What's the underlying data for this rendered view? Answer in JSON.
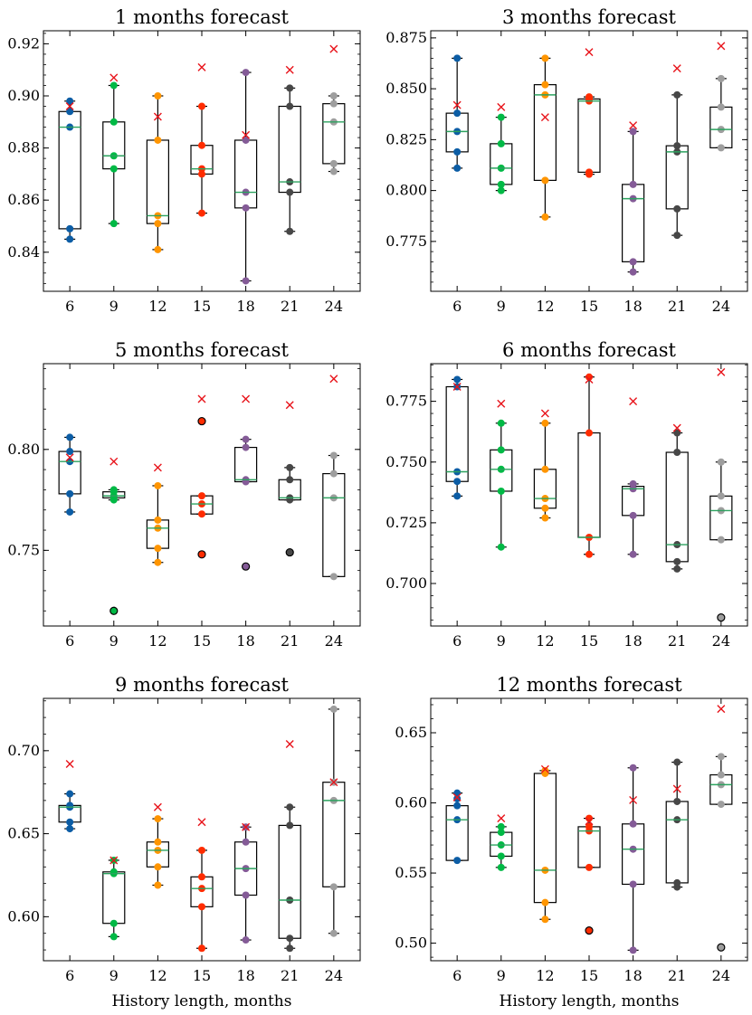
{
  "chart_data": [
    {
      "type": "box",
      "title": "1 months forecast",
      "xlabel": "",
      "ylabel": "",
      "categories": [
        "6",
        "9",
        "12",
        "15",
        "18",
        "21",
        "24"
      ],
      "ylim": [
        0.825,
        0.925
      ],
      "yticks": [
        0.84,
        0.86,
        0.88,
        0.9,
        0.92
      ],
      "ytick_labels": [
        "0.84",
        "0.86",
        "0.88",
        "0.90",
        "0.92"
      ],
      "boxes": [
        {
          "category": "6",
          "color": "#0c5da5",
          "q1": 0.849,
          "median": 0.888,
          "q3": 0.894,
          "whisker_low": 0.845,
          "whisker_high": 0.898,
          "points": [
            0.845,
            0.849,
            0.888,
            0.894,
            0.898
          ],
          "outliers": [],
          "marker": 0.896
        },
        {
          "category": "9",
          "color": "#00b945",
          "q1": 0.872,
          "median": 0.877,
          "q3": 0.89,
          "whisker_low": 0.851,
          "whisker_high": 0.904,
          "points": [
            0.851,
            0.872,
            0.877,
            0.89,
            0.904
          ],
          "outliers": [],
          "marker": 0.907
        },
        {
          "category": "12",
          "color": "#ff9500",
          "q1": 0.851,
          "median": 0.854,
          "q3": 0.883,
          "whisker_low": 0.841,
          "whisker_high": 0.9,
          "points": [
            0.841,
            0.851,
            0.854,
            0.883,
            0.9
          ],
          "outliers": [],
          "marker": 0.892
        },
        {
          "category": "15",
          "color": "#ff2c00",
          "q1": 0.87,
          "median": 0.872,
          "q3": 0.881,
          "whisker_low": 0.855,
          "whisker_high": 0.896,
          "points": [
            0.855,
            0.87,
            0.872,
            0.881,
            0.896
          ],
          "outliers": [],
          "marker": 0.911
        },
        {
          "category": "18",
          "color": "#845b97",
          "q1": 0.857,
          "median": 0.863,
          "q3": 0.883,
          "whisker_low": 0.829,
          "whisker_high": 0.909,
          "points": [
            0.829,
            0.857,
            0.863,
            0.883,
            0.909
          ],
          "outliers": [],
          "marker": 0.885
        },
        {
          "category": "21",
          "color": "#474747",
          "q1": 0.863,
          "median": 0.867,
          "q3": 0.896,
          "whisker_low": 0.848,
          "whisker_high": 0.903,
          "points": [
            0.848,
            0.863,
            0.867,
            0.896,
            0.903
          ],
          "outliers": [],
          "marker": 0.91
        },
        {
          "category": "24",
          "color": "#9e9e9e",
          "q1": 0.874,
          "median": 0.89,
          "q3": 0.897,
          "whisker_low": 0.871,
          "whisker_high": 0.9,
          "points": [
            0.871,
            0.874,
            0.89,
            0.897,
            0.9
          ],
          "outliers": [],
          "marker": 0.918
        }
      ]
    },
    {
      "type": "box",
      "title": "3 months forecast",
      "xlabel": "",
      "ylabel": "",
      "categories": [
        "6",
        "9",
        "12",
        "15",
        "18",
        "21",
        "24"
      ],
      "ylim": [
        0.7505,
        0.8785
      ],
      "yticks": [
        0.775,
        0.8,
        0.825,
        0.85,
        0.875
      ],
      "ytick_labels": [
        "0.775",
        "0.800",
        "0.825",
        "0.850",
        "0.875"
      ],
      "boxes": [
        {
          "category": "6",
          "color": "#0c5da5",
          "q1": 0.819,
          "median": 0.829,
          "q3": 0.838,
          "whisker_low": 0.811,
          "whisker_high": 0.865,
          "points": [
            0.811,
            0.819,
            0.829,
            0.838,
            0.865
          ],
          "outliers": [],
          "marker": 0.842
        },
        {
          "category": "9",
          "color": "#00b945",
          "q1": 0.803,
          "median": 0.811,
          "q3": 0.823,
          "whisker_low": 0.8,
          "whisker_high": 0.836,
          "points": [
            0.8,
            0.803,
            0.811,
            0.823,
            0.836
          ],
          "outliers": [],
          "marker": 0.841
        },
        {
          "category": "12",
          "color": "#ff9500",
          "q1": 0.805,
          "median": 0.847,
          "q3": 0.852,
          "whisker_low": 0.787,
          "whisker_high": 0.865,
          "points": [
            0.787,
            0.805,
            0.847,
            0.852,
            0.865
          ],
          "outliers": [],
          "marker": 0.836
        },
        {
          "category": "15",
          "color": "#ff2c00",
          "q1": 0.809,
          "median": 0.844,
          "q3": 0.845,
          "whisker_low": 0.808,
          "whisker_high": 0.846,
          "points": [
            0.808,
            0.809,
            0.844,
            0.845,
            0.846
          ],
          "outliers": [],
          "marker": 0.868
        },
        {
          "category": "18",
          "color": "#845b97",
          "q1": 0.765,
          "median": 0.796,
          "q3": 0.803,
          "whisker_low": 0.76,
          "whisker_high": 0.829,
          "points": [
            0.76,
            0.765,
            0.796,
            0.803,
            0.829
          ],
          "outliers": [],
          "marker": 0.832
        },
        {
          "category": "21",
          "color": "#474747",
          "q1": 0.791,
          "median": 0.819,
          "q3": 0.822,
          "whisker_low": 0.778,
          "whisker_high": 0.847,
          "points": [
            0.778,
            0.791,
            0.819,
            0.822,
            0.847
          ],
          "outliers": [],
          "marker": 0.86
        },
        {
          "category": "24",
          "color": "#9e9e9e",
          "q1": 0.821,
          "median": 0.83,
          "q3": 0.841,
          "whisker_low": 0.821,
          "whisker_high": 0.855,
          "points": [
            0.821,
            0.83,
            0.841,
            0.855
          ],
          "outliers": [],
          "marker": 0.871
        }
      ]
    },
    {
      "type": "box",
      "title": "5 months forecast",
      "xlabel": "",
      "ylabel": "",
      "categories": [
        "6",
        "9",
        "12",
        "15",
        "18",
        "21",
        "24"
      ],
      "ylim": [
        0.7125,
        0.8425
      ],
      "yticks": [
        0.75,
        0.8
      ],
      "ytick_labels": [
        "0.75",
        "0.80"
      ],
      "boxes": [
        {
          "category": "6",
          "color": "#0c5da5",
          "q1": 0.778,
          "median": 0.794,
          "q3": 0.799,
          "whisker_low": 0.769,
          "whisker_high": 0.806,
          "points": [
            0.769,
            0.778,
            0.794,
            0.799,
            0.806
          ],
          "outliers": [],
          "marker": 0.796
        },
        {
          "category": "9",
          "color": "#00b945",
          "q1": 0.776,
          "median": 0.777,
          "q3": 0.779,
          "whisker_low": 0.775,
          "whisker_high": 0.78,
          "points": [
            0.775,
            0.776,
            0.777,
            0.779,
            0.78
          ],
          "outliers": [
            0.72
          ],
          "marker": 0.794
        },
        {
          "category": "12",
          "color": "#ff9500",
          "q1": 0.751,
          "median": 0.761,
          "q3": 0.765,
          "whisker_low": 0.744,
          "whisker_high": 0.782,
          "points": [
            0.744,
            0.751,
            0.761,
            0.765,
            0.782
          ],
          "outliers": [],
          "marker": 0.791
        },
        {
          "category": "15",
          "color": "#ff2c00",
          "q1": 0.768,
          "median": 0.773,
          "q3": 0.777,
          "whisker_low": 0.768,
          "whisker_high": 0.777,
          "points": [
            0.768,
            0.773,
            0.777
          ],
          "outliers": [
            0.814,
            0.748
          ],
          "marker": 0.825
        },
        {
          "category": "18",
          "color": "#845b97",
          "q1": 0.784,
          "median": 0.785,
          "q3": 0.801,
          "whisker_low": 0.784,
          "whisker_high": 0.805,
          "points": [
            0.784,
            0.785,
            0.801,
            0.805
          ],
          "outliers": [
            0.742
          ],
          "marker": 0.825
        },
        {
          "category": "21",
          "color": "#474747",
          "q1": 0.775,
          "median": 0.776,
          "q3": 0.785,
          "whisker_low": 0.775,
          "whisker_high": 0.791,
          "points": [
            0.775,
            0.776,
            0.785,
            0.791
          ],
          "outliers": [
            0.749
          ],
          "marker": 0.822
        },
        {
          "category": "24",
          "color": "#9e9e9e",
          "q1": 0.737,
          "median": 0.776,
          "q3": 0.788,
          "whisker_low": 0.737,
          "whisker_high": 0.797,
          "points": [
            0.737,
            0.776,
            0.788,
            0.797
          ],
          "outliers": [],
          "marker": 0.835
        }
      ]
    },
    {
      "type": "box",
      "title": "6 months forecast",
      "xlabel": "",
      "ylabel": "",
      "categories": [
        "6",
        "9",
        "12",
        "15",
        "18",
        "21",
        "24"
      ],
      "ylim": [
        0.6825,
        0.7905
      ],
      "yticks": [
        0.7,
        0.725,
        0.75,
        0.775
      ],
      "ytick_labels": [
        "0.700",
        "0.725",
        "0.750",
        "0.775"
      ],
      "boxes": [
        {
          "category": "6",
          "color": "#0c5da5",
          "q1": 0.742,
          "median": 0.746,
          "q3": 0.781,
          "whisker_low": 0.736,
          "whisker_high": 0.784,
          "points": [
            0.736,
            0.742,
            0.746,
            0.781,
            0.784
          ],
          "outliers": [],
          "marker": 0.781
        },
        {
          "category": "9",
          "color": "#00b945",
          "q1": 0.738,
          "median": 0.747,
          "q3": 0.755,
          "whisker_low": 0.715,
          "whisker_high": 0.766,
          "points": [
            0.715,
            0.738,
            0.747,
            0.755,
            0.766
          ],
          "outliers": [],
          "marker": 0.774
        },
        {
          "category": "12",
          "color": "#ff9500",
          "q1": 0.731,
          "median": 0.735,
          "q3": 0.747,
          "whisker_low": 0.727,
          "whisker_high": 0.766,
          "points": [
            0.727,
            0.731,
            0.735,
            0.747,
            0.766
          ],
          "outliers": [],
          "marker": 0.77
        },
        {
          "category": "15",
          "color": "#ff2c00",
          "q1": 0.719,
          "median": 0.719,
          "q3": 0.762,
          "whisker_low": 0.712,
          "whisker_high": 0.785,
          "points": [
            0.712,
            0.719,
            0.762,
            0.785
          ],
          "outliers": [],
          "marker": 0.784
        },
        {
          "category": "18",
          "color": "#845b97",
          "q1": 0.728,
          "median": 0.739,
          "q3": 0.74,
          "whisker_low": 0.712,
          "whisker_high": 0.741,
          "points": [
            0.712,
            0.728,
            0.739,
            0.741
          ],
          "outliers": [],
          "marker": 0.775
        },
        {
          "category": "21",
          "color": "#474747",
          "q1": 0.709,
          "median": 0.716,
          "q3": 0.754,
          "whisker_low": 0.706,
          "whisker_high": 0.762,
          "points": [
            0.706,
            0.709,
            0.716,
            0.754,
            0.762
          ],
          "outliers": [],
          "marker": 0.764
        },
        {
          "category": "24",
          "color": "#9e9e9e",
          "q1": 0.718,
          "median": 0.73,
          "q3": 0.736,
          "whisker_low": 0.718,
          "whisker_high": 0.75,
          "points": [
            0.718,
            0.73,
            0.736,
            0.75
          ],
          "outliers": [
            0.686
          ],
          "marker": 0.787
        }
      ]
    },
    {
      "type": "box",
      "title": "9 months forecast",
      "xlabel": "History length, months",
      "ylabel": "",
      "categories": [
        "6",
        "9",
        "12",
        "15",
        "18",
        "21",
        "24"
      ],
      "ylim": [
        0.5735,
        0.7315
      ],
      "yticks": [
        0.6,
        0.65,
        0.7
      ],
      "ytick_labels": [
        "0.60",
        "0.65",
        "0.70"
      ],
      "boxes": [
        {
          "category": "6",
          "color": "#0c5da5",
          "q1": 0.657,
          "median": 0.666,
          "q3": 0.667,
          "whisker_low": 0.653,
          "whisker_high": 0.674,
          "points": [
            0.653,
            0.657,
            0.666,
            0.667,
            0.674
          ],
          "outliers": [],
          "marker": 0.692
        },
        {
          "category": "9",
          "color": "#00b945",
          "q1": 0.596,
          "median": 0.626,
          "q3": 0.627,
          "whisker_low": 0.588,
          "whisker_high": 0.634,
          "points": [
            0.588,
            0.596,
            0.626,
            0.627,
            0.634
          ],
          "outliers": [],
          "marker": 0.634
        },
        {
          "category": "12",
          "color": "#ff9500",
          "q1": 0.63,
          "median": 0.64,
          "q3": 0.645,
          "whisker_low": 0.619,
          "whisker_high": 0.659,
          "points": [
            0.619,
            0.63,
            0.64,
            0.645,
            0.659
          ],
          "outliers": [],
          "marker": 0.666
        },
        {
          "category": "15",
          "color": "#ff2c00",
          "q1": 0.606,
          "median": 0.617,
          "q3": 0.624,
          "whisker_low": 0.581,
          "whisker_high": 0.64,
          "points": [
            0.581,
            0.606,
            0.617,
            0.624,
            0.64
          ],
          "outliers": [],
          "marker": 0.657
        },
        {
          "category": "18",
          "color": "#845b97",
          "q1": 0.613,
          "median": 0.629,
          "q3": 0.645,
          "whisker_low": 0.586,
          "whisker_high": 0.654,
          "points": [
            0.586,
            0.613,
            0.629,
            0.645,
            0.654
          ],
          "outliers": [],
          "marker": 0.654
        },
        {
          "category": "21",
          "color": "#474747",
          "q1": 0.587,
          "median": 0.61,
          "q3": 0.655,
          "whisker_low": 0.581,
          "whisker_high": 0.666,
          "points": [
            0.581,
            0.587,
            0.61,
            0.655,
            0.666
          ],
          "outliers": [],
          "marker": 0.704
        },
        {
          "category": "24",
          "color": "#9e9e9e",
          "q1": 0.618,
          "median": 0.67,
          "q3": 0.681,
          "whisker_low": 0.59,
          "whisker_high": 0.725,
          "points": [
            0.59,
            0.618,
            0.67,
            0.681,
            0.725
          ],
          "outliers": [],
          "marker": 0.681
        }
      ]
    },
    {
      "type": "box",
      "title": "12 months forecast",
      "xlabel": "History length, months",
      "ylabel": "",
      "categories": [
        "6",
        "9",
        "12",
        "15",
        "18",
        "21",
        "24"
      ],
      "ylim": [
        0.4875,
        0.6745
      ],
      "yticks": [
        0.5,
        0.55,
        0.6,
        0.65
      ],
      "ytick_labels": [
        "0.50",
        "0.55",
        "0.60",
        "0.65"
      ],
      "boxes": [
        {
          "category": "6",
          "color": "#0c5da5",
          "q1": 0.559,
          "median": 0.588,
          "q3": 0.598,
          "whisker_low": 0.559,
          "whisker_high": 0.607,
          "points": [
            0.559,
            0.588,
            0.598,
            0.603,
            0.607
          ],
          "outliers": [],
          "marker": 0.604
        },
        {
          "category": "9",
          "color": "#00b945",
          "q1": 0.562,
          "median": 0.57,
          "q3": 0.579,
          "whisker_low": 0.554,
          "whisker_high": 0.583,
          "points": [
            0.554,
            0.562,
            0.57,
            0.579,
            0.583
          ],
          "outliers": [],
          "marker": 0.589
        },
        {
          "category": "12",
          "color": "#ff9500",
          "q1": 0.529,
          "median": 0.552,
          "q3": 0.621,
          "whisker_low": 0.517,
          "whisker_high": 0.623,
          "points": [
            0.517,
            0.529,
            0.552,
            0.621,
            0.623
          ],
          "outliers": [],
          "marker": 0.624
        },
        {
          "category": "15",
          "color": "#ff2c00",
          "q1": 0.554,
          "median": 0.58,
          "q3": 0.583,
          "whisker_low": 0.554,
          "whisker_high": 0.589,
          "points": [
            0.554,
            0.58,
            0.583,
            0.589
          ],
          "outliers": [
            0.509
          ],
          "marker": 0.587
        },
        {
          "category": "18",
          "color": "#845b97",
          "q1": 0.542,
          "median": 0.567,
          "q3": 0.585,
          "whisker_low": 0.495,
          "whisker_high": 0.625,
          "points": [
            0.495,
            0.542,
            0.567,
            0.585,
            0.625
          ],
          "outliers": [],
          "marker": 0.602
        },
        {
          "category": "21",
          "color": "#474747",
          "q1": 0.543,
          "median": 0.588,
          "q3": 0.601,
          "whisker_low": 0.54,
          "whisker_high": 0.629,
          "points": [
            0.54,
            0.543,
            0.588,
            0.601,
            0.629
          ],
          "outliers": [],
          "marker": 0.61
        },
        {
          "category": "24",
          "color": "#9e9e9e",
          "q1": 0.599,
          "median": 0.613,
          "q3": 0.62,
          "whisker_low": 0.599,
          "whisker_high": 0.633,
          "points": [
            0.599,
            0.613,
            0.62,
            0.633
          ],
          "outliers": [
            0.497
          ],
          "marker": 0.667
        }
      ]
    }
  ],
  "style": {
    "median_color": "#2ca25f",
    "marker_color": "#e8141b",
    "box_color": "#000000"
  }
}
